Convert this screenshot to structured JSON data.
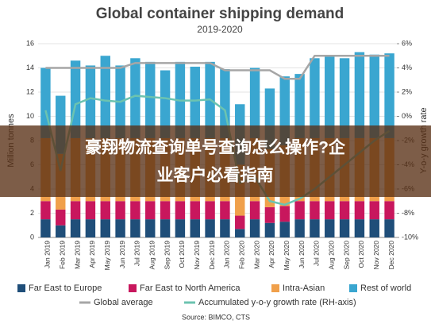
{
  "chart_data": {
    "type": "bar",
    "title": "Global container shipping demand",
    "subtitle": "2019-2020",
    "y_label": "Million tonnes",
    "y2_label": "Y-o-y growth rate",
    "source": "Source: BIMCO, CTS",
    "categories": [
      "Jan 2019",
      "Feb 2019",
      "Mar 2019",
      "Apr 2019",
      "May 2019",
      "Jun 2019",
      "Jul 2019",
      "Aug 2019",
      "Sep 2019",
      "Oct 2019",
      "Nov 2019",
      "Dec 2019",
      "Jan 2020",
      "Feb 2020",
      "Mar 2020",
      "Apr 2020",
      "May 2020",
      "Jun 2020",
      "Jul 2020",
      "Aug 2020",
      "Sep 2020",
      "Oct 2020",
      "Nov 2020",
      "Dec 2020"
    ],
    "ylim": [
      0,
      16
    ],
    "yticks": [
      0,
      2,
      4,
      6,
      8,
      10,
      12,
      14,
      16
    ],
    "y2lim": [
      -10,
      6
    ],
    "y2ticks": [
      {
        "value": 6,
        "label": "6%"
      },
      {
        "value": 4,
        "label": "4%"
      },
      {
        "value": 2,
        "label": "2%"
      },
      {
        "value": 0,
        "label": "0%"
      },
      {
        "value": -2,
        "label": "-2%"
      },
      {
        "value": -4,
        "label": "-4%"
      },
      {
        "value": -6,
        "label": "-6%"
      },
      {
        "value": -8,
        "label": "-8%"
      },
      {
        "value": -10,
        "label": "-10%"
      }
    ],
    "grid": true,
    "series": [
      {
        "name": "Far East to Europe",
        "color": "#1f4e79",
        "stack": true,
        "values": [
          1.5,
          1.0,
          1.5,
          1.5,
          1.5,
          1.5,
          1.5,
          1.5,
          1.5,
          1.5,
          1.5,
          1.5,
          1.5,
          0.7,
          1.5,
          1.2,
          1.3,
          1.5,
          1.5,
          1.5,
          1.5,
          1.5,
          1.5,
          1.5
        ]
      },
      {
        "name": "Far East to North America",
        "color": "#c8175d",
        "stack": true,
        "values": [
          1.5,
          1.3,
          1.5,
          1.5,
          1.5,
          1.5,
          1.5,
          1.5,
          1.5,
          1.5,
          1.5,
          1.5,
          1.5,
          1.1,
          1.5,
          1.3,
          1.3,
          1.5,
          1.5,
          1.5,
          1.5,
          1.5,
          1.5,
          1.5
        ]
      },
      {
        "name": "Intra-Asian",
        "color": "#f0a04b",
        "stack": true,
        "values": [
          5.2,
          4.6,
          5.2,
          5.2,
          5.2,
          5.2,
          5.2,
          5.2,
          5.2,
          5.2,
          5.2,
          5.2,
          5.2,
          4.2,
          5.2,
          4.8,
          5.0,
          5.2,
          5.2,
          5.2,
          5.2,
          5.2,
          5.2,
          5.2
        ]
      },
      {
        "name": "Rest of world",
        "color": "#3aa6d0",
        "stack": true,
        "values": [
          5.8,
          4.8,
          6.4,
          6.0,
          6.8,
          6.0,
          6.6,
          6.3,
          5.6,
          6.3,
          5.9,
          6.3,
          5.7,
          5.0,
          5.8,
          5.0,
          5.7,
          5.3,
          6.6,
          6.8,
          6.6,
          7.1,
          6.9,
          7.0
        ]
      },
      {
        "name": "Global average",
        "color": "#a6a6a6",
        "line": true,
        "values": [
          14.0,
          14.0,
          14.0,
          14.0,
          14.0,
          14.0,
          14.4,
          14.4,
          14.4,
          14.4,
          14.4,
          14.4,
          13.8,
          13.8,
          13.8,
          13.8,
          13.1,
          13.1,
          15.0,
          15.0,
          15.0,
          15.0,
          15.0,
          15.0
        ]
      },
      {
        "name": "Accumulated y-o-y growth rate (RH-axis)",
        "color": "#6cc3b0",
        "line": true,
        "axis": "y2",
        "values": [
          0.5,
          -4.5,
          1.0,
          1.5,
          1.3,
          1.2,
          1.7,
          1.6,
          1.5,
          1.3,
          1.3,
          1.4,
          0.5,
          -5.5,
          -5.0,
          -7.0,
          -7.3,
          -6.8,
          -6.0,
          -5.0,
          -4.0,
          -3.0,
          -2.0,
          -1.2
        ]
      }
    ]
  },
  "banner": {
    "lines": [
      "豪翔物流查询单号查询怎么操作?企",
      "业客户必看指南"
    ]
  }
}
